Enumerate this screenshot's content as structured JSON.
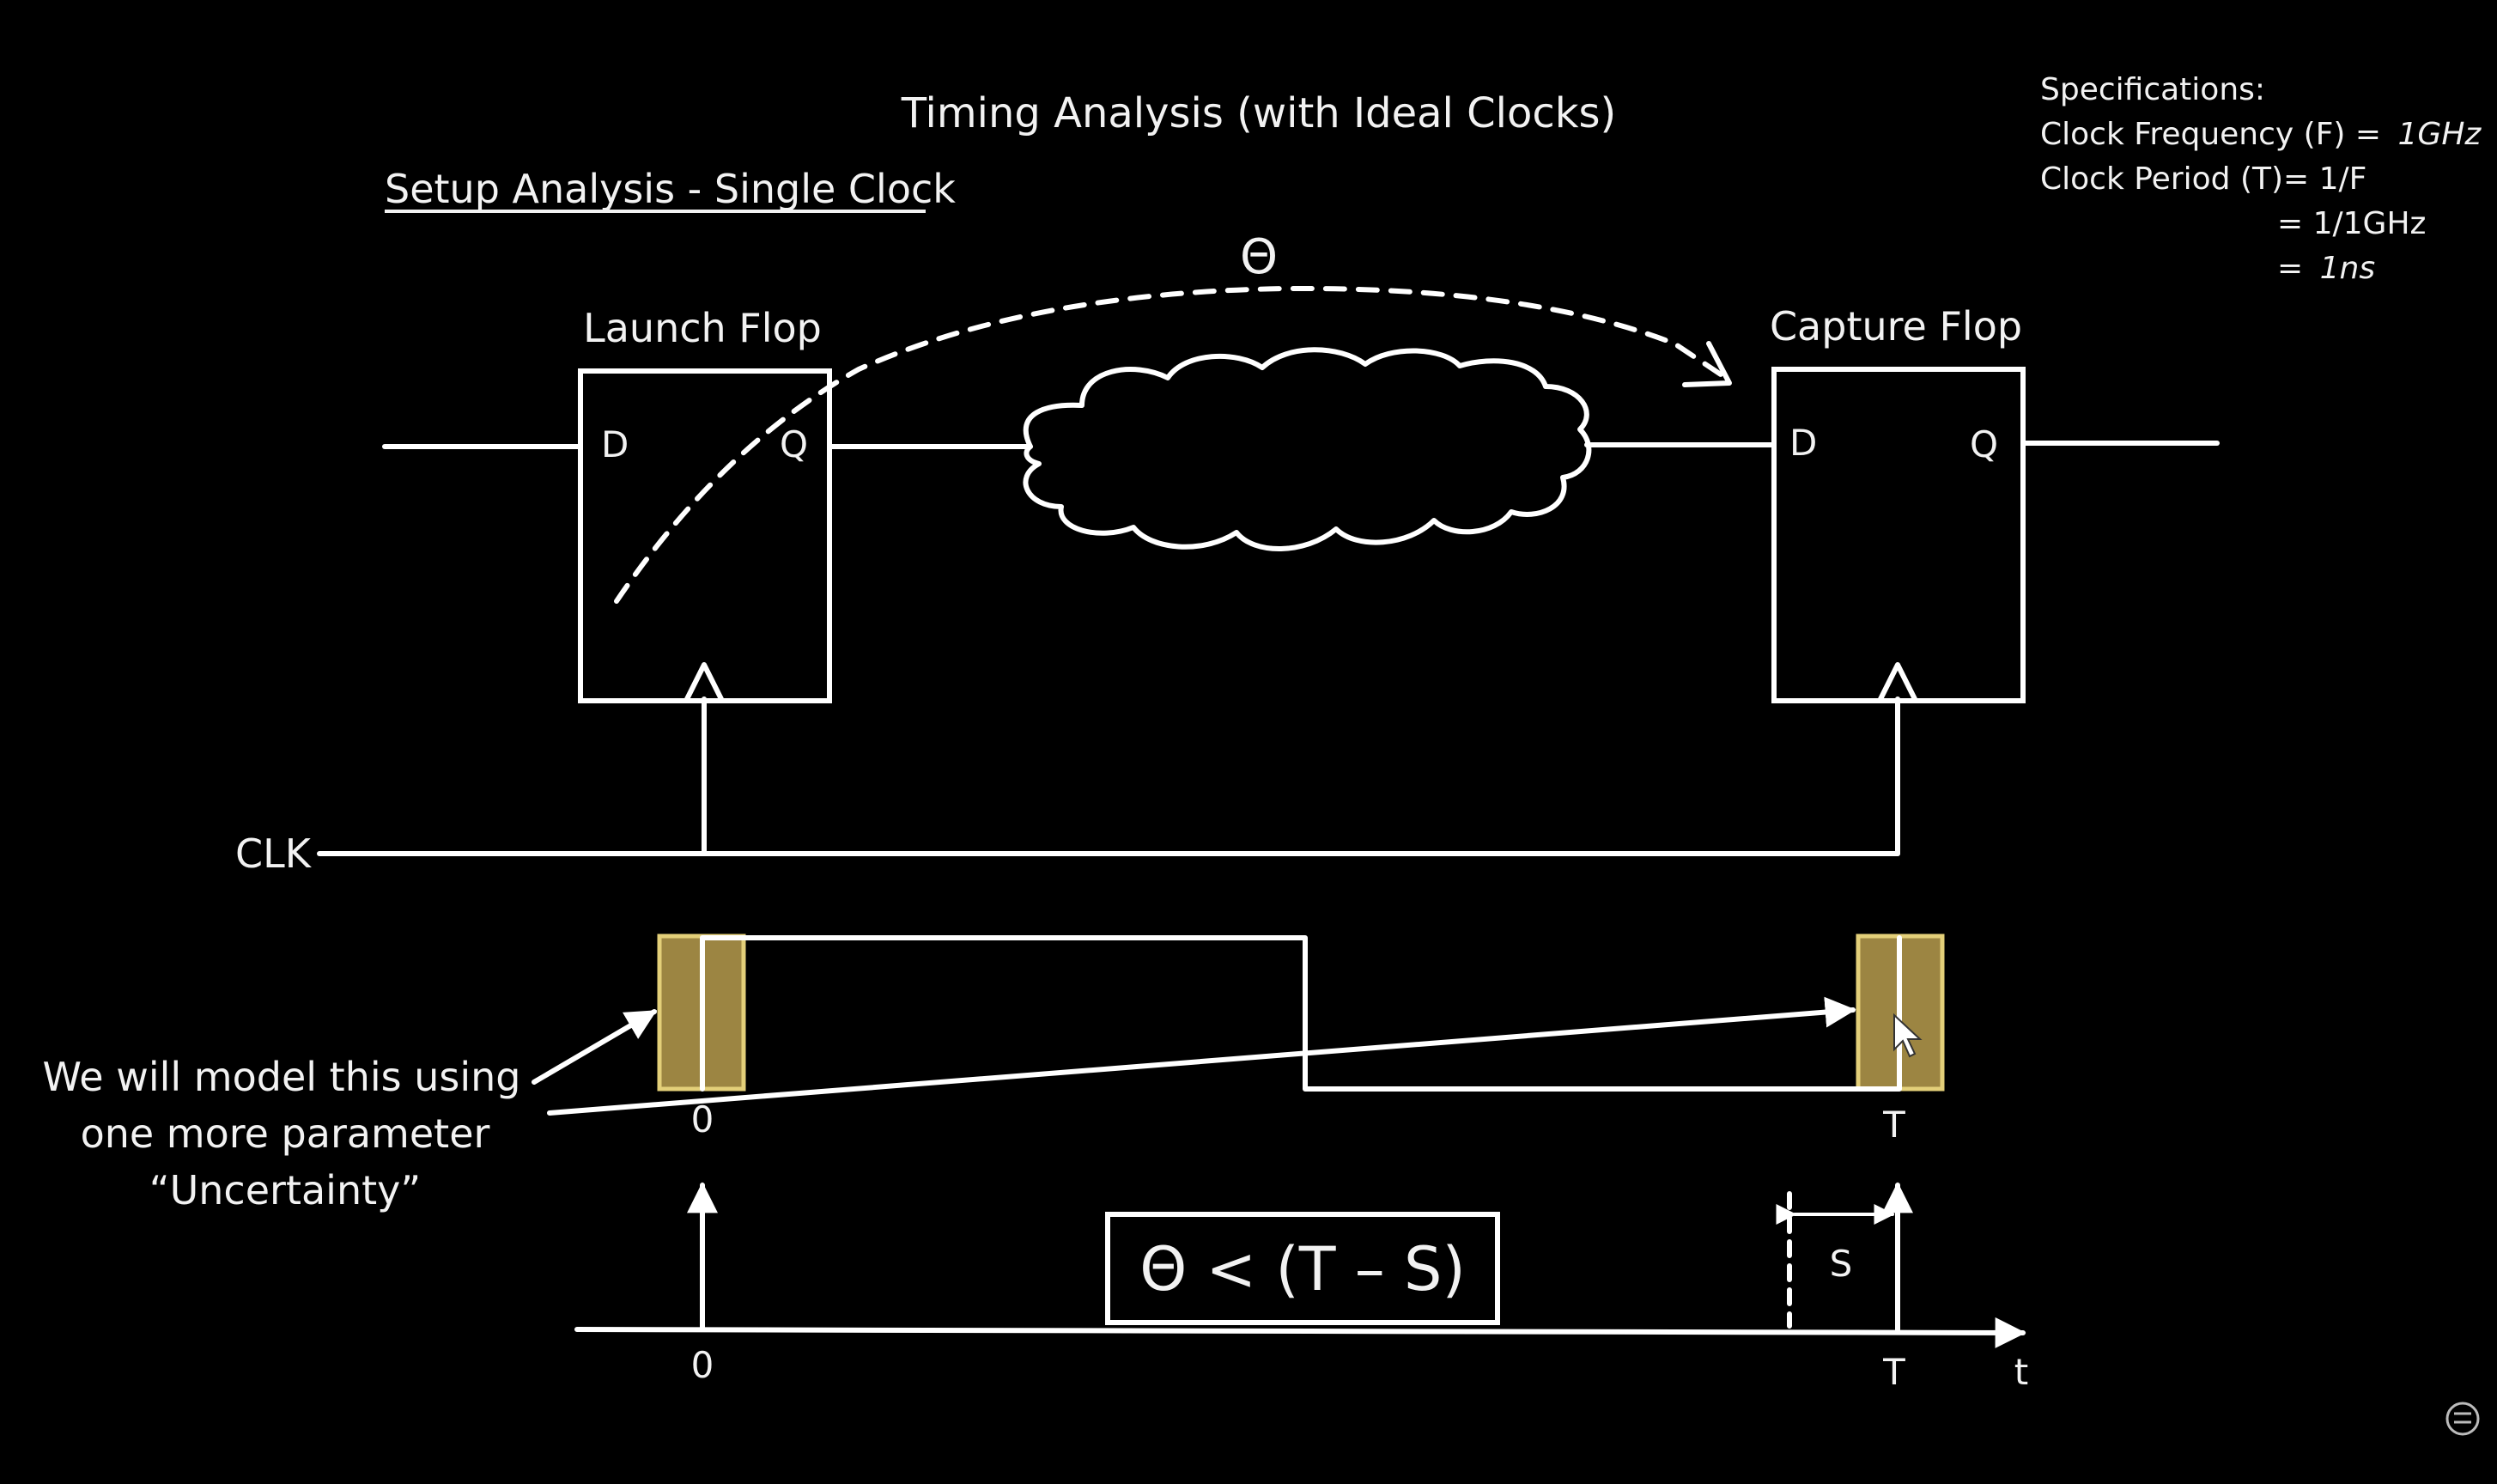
{
  "title": "Timing Analysis (with Ideal Clocks)",
  "subtitle": "Setup Analysis - Single Clock",
  "specs": {
    "heading": "Specifications:",
    "freq_label": "Clock Frequency (F) =",
    "freq_value": "1GHz",
    "period_label": "Clock Period (T)= 1/F",
    "period_eq1": "= 1/1GHz",
    "period_eq2_prefix": "=",
    "period_eq2_value": "1ns"
  },
  "path_delay_symbol": "Θ",
  "launch_flop": {
    "label": "Launch Flop",
    "d": "D",
    "q": "Q"
  },
  "capture_flop": {
    "label": "Capture Flop",
    "d": "D",
    "q": "Q"
  },
  "clk_label": "CLK",
  "waveform": {
    "label_0": "0",
    "label_T": "T"
  },
  "note": {
    "line1": "We will model this using",
    "line2": "one more parameter",
    "line3": "“Uncertainty”"
  },
  "timeline": {
    "label_0": "0",
    "label_T": "T",
    "label_t": "t",
    "setup_label": "S",
    "equation": "Θ < (T – S)"
  },
  "colors": {
    "background": "#000000",
    "line": "#ffffff",
    "band_fill": "#9c8542",
    "band_border": "#e3cf79"
  }
}
